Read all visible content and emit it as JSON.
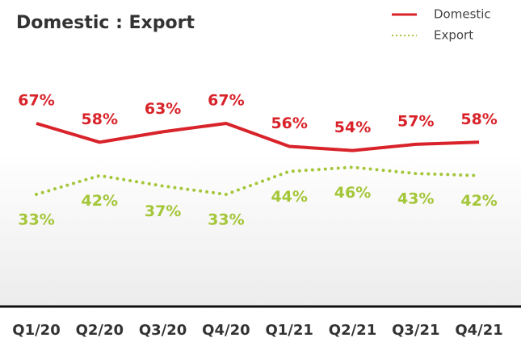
{
  "chart_data": {
    "type": "line",
    "title": "Domestic : Export",
    "categories": [
      "Q1/20",
      "Q2/20",
      "Q3/20",
      "Q4/20",
      "Q1/21",
      "Q2/21",
      "Q3/21",
      "Q4/21"
    ],
    "series": [
      {
        "name": "Domestic",
        "color": "#d9232a",
        "line_style": "solid",
        "values": [
          67,
          58,
          63,
          67,
          56,
          54,
          57,
          58
        ],
        "value_labels": [
          "67%",
          "58%",
          "63%",
          "67%",
          "56%",
          "54%",
          "57%",
          "58%"
        ]
      },
      {
        "name": "Export",
        "color": "#a4c639",
        "line_style": "dotted",
        "values": [
          33,
          42,
          37,
          33,
          44,
          46,
          43,
          42
        ],
        "value_labels": [
          "33%",
          "42%",
          "37%",
          "33%",
          "44%",
          "46%",
          "43%",
          "42%"
        ]
      }
    ],
    "legend": "top-right"
  }
}
